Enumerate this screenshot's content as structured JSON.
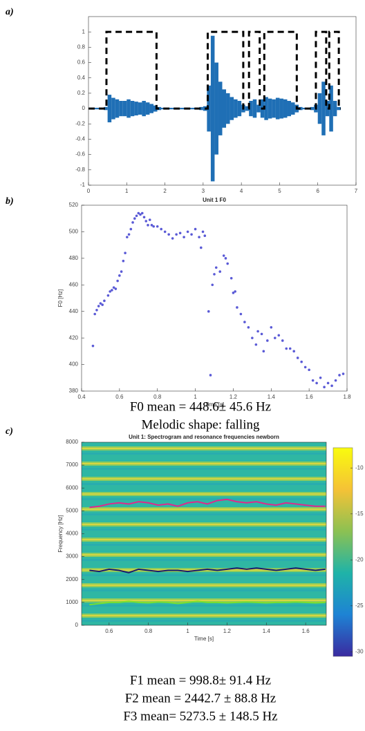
{
  "chart_data": [
    {
      "type": "line",
      "label": "a)",
      "xlim": [
        0,
        7
      ],
      "ylim": [
        -1,
        1.2
      ],
      "xticks": [
        0,
        1,
        2,
        3,
        4,
        5,
        6,
        7
      ],
      "yticks": [
        -1,
        -0.8,
        -0.6,
        -0.4,
        -0.2,
        0,
        0.2,
        0.4,
        0.6,
        0.8,
        1
      ],
      "series": [
        {
          "color": "#1f6fb5",
          "mirrored": true,
          "x": [
            0,
            0.1,
            0.2,
            0.3,
            0.4,
            0.5,
            0.6,
            0.7,
            0.8,
            0.9,
            1.0,
            1.1,
            1.2,
            1.3,
            1.4,
            1.5,
            1.6,
            1.7,
            1.8,
            1.9,
            2.0,
            2.1,
            2.2,
            2.3,
            2.4,
            2.5,
            2.6,
            2.7,
            2.8,
            2.9,
            3.0,
            3.1,
            3.2,
            3.3,
            3.4,
            3.5,
            3.6,
            3.7,
            3.8,
            3.9,
            4.0,
            4.1,
            4.2,
            4.3,
            4.4,
            4.5,
            4.6,
            4.7,
            4.8,
            4.9,
            5.0,
            5.1,
            5.2,
            5.3,
            5.4,
            5.5,
            5.6,
            5.7,
            5.8,
            5.9,
            6.0,
            6.1,
            6.2,
            6.3,
            6.4,
            6.5
          ],
          "values": [
            0.01,
            0.01,
            0.01,
            0.01,
            0.02,
            0.18,
            0.14,
            0.12,
            0.1,
            0.1,
            0.12,
            0.1,
            0.09,
            0.08,
            0.1,
            0.08,
            0.06,
            0.04,
            0.02,
            0.01,
            0.01,
            0.01,
            0.01,
            0.01,
            0.01,
            0.01,
            0.01,
            0.01,
            0.01,
            0.02,
            0.03,
            0.3,
            0.95,
            0.6,
            0.35,
            0.25,
            0.2,
            0.15,
            0.12,
            0.1,
            0.05,
            0.03,
            0.1,
            0.12,
            0.05,
            0.12,
            0.15,
            0.13,
            0.12,
            0.14,
            0.13,
            0.12,
            0.1,
            0.08,
            0.05,
            0.02,
            0.01,
            0.01,
            0.02,
            0.05,
            0.2,
            0.35,
            0.1,
            0.3,
            0.1,
            0.02
          ]
        },
        {
          "color": "#000000",
          "dashed": true,
          "x": [
            0,
            0.47,
            0.47,
            1.78,
            1.78,
            3.12,
            3.12,
            4.05,
            4.05,
            4.2,
            4.2,
            4.48,
            4.48,
            4.6,
            4.6,
            5.45,
            5.45,
            5.95,
            5.95,
            6.22,
            6.22,
            6.3,
            6.3,
            6.55,
            6.55,
            6.6
          ],
          "values": [
            0,
            0,
            1,
            1,
            0,
            0,
            1,
            1,
            0,
            0,
            1,
            1,
            0,
            0,
            1,
            1,
            0,
            0,
            1,
            1,
            0,
            0,
            1,
            1,
            0,
            0
          ]
        }
      ]
    },
    {
      "type": "scatter",
      "label": "b)",
      "title": "Unit 1 F0",
      "xlabel": "Time [s]",
      "ylabel": "F0 [Hz]",
      "color": "#5a5ad6",
      "xlim": [
        0.4,
        1.8
      ],
      "ylim": [
        380,
        520
      ],
      "xticks": [
        0.4,
        0.6,
        0.8,
        1,
        1.2,
        1.4,
        1.6,
        1.8
      ],
      "yticks": [
        380,
        400,
        420,
        440,
        460,
        480,
        500,
        520
      ],
      "x": [
        0.46,
        0.47,
        0.48,
        0.49,
        0.5,
        0.51,
        0.52,
        0.54,
        0.55,
        0.56,
        0.57,
        0.58,
        0.59,
        0.6,
        0.61,
        0.62,
        0.63,
        0.64,
        0.65,
        0.66,
        0.67,
        0.68,
        0.69,
        0.7,
        0.71,
        0.72,
        0.73,
        0.74,
        0.75,
        0.76,
        0.77,
        0.78,
        0.8,
        0.82,
        0.84,
        0.86,
        0.88,
        0.9,
        0.92,
        0.94,
        0.96,
        0.98,
        1.0,
        1.02,
        1.03,
        1.04,
        1.05,
        1.07,
        1.08,
        1.09,
        1.1,
        1.11,
        1.13,
        1.15,
        1.16,
        1.17,
        1.19,
        1.2,
        1.21,
        1.22,
        1.24,
        1.26,
        1.28,
        1.3,
        1.32,
        1.33,
        1.35,
        1.36,
        1.38,
        1.4,
        1.42,
        1.44,
        1.46,
        1.48,
        1.5,
        1.52,
        1.54,
        1.56,
        1.58,
        1.6,
        1.62,
        1.64,
        1.66,
        1.68,
        1.7,
        1.72,
        1.74,
        1.76,
        1.78
      ],
      "values": [
        414,
        438,
        441,
        444,
        446,
        445,
        448,
        452,
        455,
        456,
        458,
        457,
        463,
        467,
        470,
        478,
        484,
        496,
        498,
        502,
        507,
        510,
        512,
        514,
        513,
        514,
        511,
        508,
        505,
        509,
        505,
        504,
        504,
        502,
        500,
        498,
        495,
        498,
        499,
        496,
        500,
        498,
        502,
        496,
        488,
        500,
        497,
        440,
        392,
        460,
        468,
        473,
        470,
        482,
        480,
        476,
        465,
        454,
        455,
        443,
        438,
        432,
        428,
        420,
        415,
        425,
        423,
        410,
        418,
        428,
        420,
        422,
        418,
        412,
        412,
        410,
        405,
        402,
        398,
        396,
        388,
        386,
        390,
        383,
        386,
        384,
        388,
        392,
        393
      ],
      "caption": [
        "F0 mean = 448.6± 45.6 Hz",
        "Melodic shape: falling"
      ]
    },
    {
      "type": "heatmap",
      "label": "c)",
      "title": "Unit 1: Spectrogram and resonance frequencies newborn",
      "xlabel": "Time [s]",
      "ylabel": "Frequency [Hz]",
      "xlim": [
        0.46,
        1.705
      ],
      "ylim": [
        0,
        8000
      ],
      "xticks": [
        0.6,
        0.8,
        1,
        1.2,
        1.4,
        1.6
      ],
      "yticks": [
        0,
        1000,
        2000,
        3000,
        4000,
        5000,
        6000,
        7000,
        8000
      ],
      "clim": [
        -30.5,
        -7.8
      ],
      "cticks": [
        -10,
        -15,
        -20,
        -25,
        -30
      ],
      "x": [
        0.5,
        0.55,
        0.6,
        0.65,
        0.7,
        0.75,
        0.8,
        0.85,
        0.9,
        0.95,
        1.0,
        1.05,
        1.1,
        1.15,
        1.2,
        1.25,
        1.3,
        1.35,
        1.4,
        1.45,
        1.5,
        1.55,
        1.6,
        1.65,
        1.7
      ],
      "series": [
        {
          "color": "#7be02c",
          "values": [
            900,
            950,
            1000,
            1000,
            1050,
            1000,
            980,
            1020,
            1000,
            950,
            1000,
            1050,
            1000,
            1000,
            980,
            1000,
            1020,
            1000,
            980,
            1000,
            1000,
            1020,
            1000,
            980,
            1000
          ]
        },
        {
          "color": "#1a1a6e",
          "values": [
            2400,
            2350,
            2450,
            2400,
            2300,
            2450,
            2400,
            2350,
            2400,
            2400,
            2350,
            2400,
            2450,
            2400,
            2450,
            2500,
            2450,
            2500,
            2450,
            2400,
            2450,
            2500,
            2450,
            2400,
            2450
          ]
        },
        {
          "color": "#e0288c",
          "values": [
            5150,
            5200,
            5300,
            5350,
            5300,
            5400,
            5350,
            5250,
            5300,
            5200,
            5350,
            5400,
            5300,
            5450,
            5500,
            5400,
            5350,
            5400,
            5300,
            5250,
            5350,
            5300,
            5250,
            5200,
            5200
          ]
        }
      ],
      "caption": [
        "F1 mean = 998.8± 91.4 Hz",
        "F2 mean = 2442.7 ± 88.8 Hz",
        "F3 mean= 5273.5 ± 148.5 Hz"
      ]
    }
  ]
}
